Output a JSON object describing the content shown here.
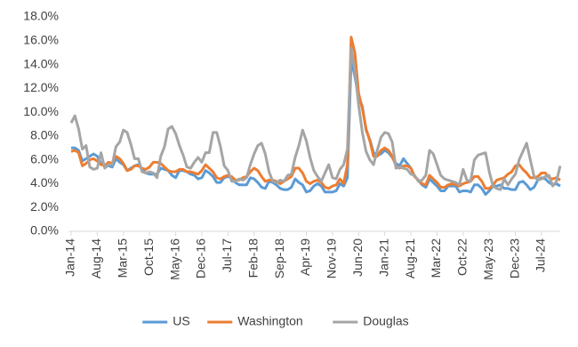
{
  "chart_data": {
    "type": "line",
    "categories": [
      "Jan-14",
      null,
      null,
      null,
      null,
      null,
      null,
      "Aug-14",
      null,
      null,
      null,
      null,
      null,
      null,
      "Mar-15",
      null,
      null,
      null,
      null,
      null,
      null,
      "Oct-15",
      null,
      null,
      null,
      null,
      null,
      null,
      "May-16",
      null,
      null,
      null,
      null,
      null,
      null,
      "Dec-16",
      null,
      null,
      null,
      null,
      null,
      null,
      "Jul-17",
      null,
      null,
      null,
      null,
      null,
      null,
      "Feb-18",
      null,
      null,
      null,
      null,
      null,
      null,
      "Sep-18",
      null,
      null,
      null,
      null,
      null,
      null,
      "Apr-19",
      null,
      null,
      null,
      null,
      null,
      null,
      "Nov-19",
      null,
      null,
      null,
      null,
      null,
      null,
      "Jun-20",
      null,
      null,
      null,
      null,
      null,
      null,
      "Jan-21",
      null,
      null,
      null,
      null,
      null,
      null,
      "Aug-21",
      null,
      null,
      null,
      null,
      null,
      null,
      "Mar-22",
      null,
      null,
      null,
      null,
      null,
      null,
      "Oct-22",
      null,
      null,
      null,
      null,
      null,
      null,
      "May-23",
      null,
      null,
      null,
      null,
      null,
      null,
      "Dec-23",
      null,
      null,
      null,
      null,
      null,
      null,
      "Jul-24",
      null,
      null,
      null,
      null,
      null
    ],
    "series": [
      {
        "name": "US",
        "color": "#5b9bd5",
        "values": [
          7.0,
          7.0,
          6.8,
          5.9,
          6.1,
          6.3,
          6.5,
          6.3,
          5.7,
          5.5,
          5.5,
          5.4,
          6.1,
          5.8,
          5.6,
          5.1,
          5.3,
          5.5,
          5.6,
          5.2,
          4.9,
          4.8,
          4.8,
          4.8,
          5.3,
          5.2,
          5.1,
          4.7,
          4.5,
          5.1,
          5.1,
          5.0,
          4.8,
          4.7,
          4.4,
          4.5,
          5.1,
          4.9,
          4.6,
          4.1,
          4.1,
          4.5,
          4.6,
          4.5,
          4.1,
          3.9,
          3.9,
          3.9,
          4.5,
          4.4,
          4.1,
          3.7,
          3.6,
          4.2,
          4.1,
          3.9,
          3.6,
          3.5,
          3.5,
          3.7,
          4.4,
          4.1,
          3.9,
          3.3,
          3.4,
          3.8,
          4.0,
          3.8,
          3.3,
          3.3,
          3.3,
          3.4,
          4.0,
          3.8,
          4.5,
          14.4,
          13.0,
          11.2,
          10.5,
          8.5,
          7.7,
          6.6,
          6.4,
          6.5,
          6.8,
          6.6,
          6.2,
          5.7,
          5.5,
          6.1,
          5.7,
          5.3,
          4.6,
          4.3,
          3.9,
          3.7,
          4.4,
          4.1,
          3.8,
          3.4,
          3.4,
          3.8,
          3.8,
          3.8,
          3.3,
          3.4,
          3.4,
          3.3,
          3.9,
          3.9,
          3.6,
          3.1,
          3.4,
          3.8,
          3.8,
          3.9,
          3.6,
          3.6,
          3.5,
          3.5,
          4.1,
          4.2,
          3.9,
          3.5,
          3.7,
          4.3,
          4.5,
          4.4,
          4.1,
          3.9,
          4.0,
          3.8
        ]
      },
      {
        "name": "Washington",
        "color": "#ed7d31",
        "values": [
          6.7,
          6.8,
          6.6,
          5.5,
          5.7,
          6.0,
          6.1,
          5.9,
          5.6,
          5.5,
          5.8,
          5.7,
          6.3,
          6.1,
          5.7,
          5.1,
          5.2,
          5.5,
          5.5,
          5.3,
          5.2,
          5.4,
          5.8,
          5.8,
          5.7,
          5.4,
          5.1,
          5.0,
          5.0,
          5.2,
          5.2,
          5.0,
          5.0,
          4.9,
          4.8,
          5.1,
          5.6,
          5.3,
          5.0,
          4.5,
          4.4,
          4.6,
          4.7,
          4.6,
          4.3,
          4.3,
          4.5,
          4.6,
          5.0,
          5.3,
          5.1,
          4.6,
          4.2,
          4.3,
          4.3,
          4.2,
          4.0,
          4.2,
          4.4,
          4.6,
          5.3,
          5.3,
          4.9,
          4.2,
          4.0,
          4.2,
          4.3,
          4.1,
          3.7,
          3.6,
          3.8,
          3.9,
          4.4,
          4.0,
          5.6,
          16.3,
          15.0,
          11.6,
          10.3,
          8.6,
          7.6,
          6.3,
          6.3,
          6.8,
          7.0,
          6.8,
          6.3,
          5.5,
          5.3,
          5.5,
          5.5,
          5.3,
          4.6,
          4.3,
          4.0,
          3.9,
          4.7,
          4.4,
          4.1,
          3.7,
          3.7,
          3.9,
          4.0,
          3.9,
          3.8,
          4.0,
          4.1,
          4.2,
          4.6,
          4.6,
          4.2,
          3.6,
          3.6,
          3.9,
          4.3,
          4.4,
          4.5,
          4.8,
          5.0,
          5.5,
          5.6,
          5.2,
          4.9,
          4.5,
          4.5,
          4.6,
          4.9,
          4.9,
          4.5,
          4.4,
          4.5,
          4.3
        ]
      },
      {
        "name": "Douglas",
        "color": "#a5a5a5",
        "values": [
          9.1,
          9.7,
          8.6,
          6.9,
          7.2,
          5.4,
          5.2,
          5.3,
          6.6,
          5.3,
          5.6,
          5.6,
          7.1,
          7.5,
          8.5,
          8.3,
          7.3,
          6.1,
          6.1,
          5.0,
          4.9,
          5.0,
          4.9,
          4.5,
          6.3,
          7.1,
          8.6,
          8.8,
          8.2,
          7.2,
          6.4,
          5.4,
          5.3,
          5.8,
          6.2,
          5.8,
          6.6,
          6.6,
          8.3,
          8.3,
          7.1,
          5.5,
          5.1,
          4.2,
          4.2,
          4.4,
          4.3,
          4.5,
          5.6,
          6.5,
          7.2,
          7.4,
          6.5,
          5.0,
          4.2,
          4.1,
          4.3,
          4.2,
          4.7,
          4.8,
          6.2,
          7.2,
          8.5,
          7.6,
          6.2,
          5.1,
          4.6,
          4.2,
          4.9,
          5.6,
          4.5,
          4.4,
          5.2,
          5.6,
          6.9,
          15.4,
          13.5,
          10.6,
          8.3,
          6.7,
          6.0,
          5.6,
          6.8,
          7.9,
          8.3,
          8.2,
          7.5,
          5.3,
          5.4,
          5.3,
          5.2,
          4.8,
          4.7,
          4.2,
          4.3,
          4.7,
          6.8,
          6.5,
          5.6,
          4.7,
          4.4,
          4.3,
          4.2,
          4.1,
          3.9,
          5.2,
          4.3,
          4.2,
          6.0,
          6.4,
          6.5,
          6.6,
          5.0,
          3.8,
          3.6,
          3.5,
          4.4,
          3.9,
          4.4,
          4.8,
          6.0,
          6.7,
          7.4,
          6.0,
          4.6,
          4.3,
          4.4,
          4.6,
          4.7,
          3.8,
          4.2,
          5.5
        ]
      }
    ],
    "ylim": [
      0,
      18
    ],
    "yticks": [
      {
        "value": 0,
        "label": "0.0%"
      },
      {
        "value": 2,
        "label": "2.0%"
      },
      {
        "value": 4,
        "label": "4.0%"
      },
      {
        "value": 6,
        "label": "6.0%"
      },
      {
        "value": 8,
        "label": "8.0%"
      },
      {
        "value": 10,
        "label": "10.0%"
      },
      {
        "value": 12,
        "label": "12.0%"
      },
      {
        "value": 14,
        "label": "14.0%"
      },
      {
        "value": 16,
        "label": "16.0%"
      },
      {
        "value": 18,
        "label": "18.0%"
      }
    ],
    "grid": false,
    "legend": "bottom"
  }
}
